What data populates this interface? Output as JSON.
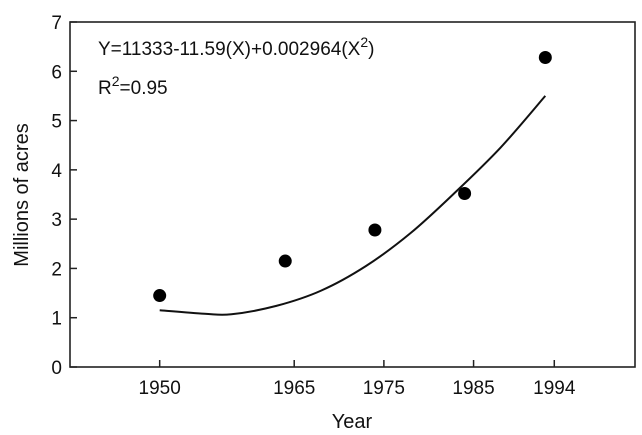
{
  "chart_data": {
    "type": "scatter",
    "xlabel": "Year",
    "ylabel": "Millions of acres",
    "xlim": [
      1940,
      2003
    ],
    "ylim": [
      0,
      7
    ],
    "x_ticks": [
      1950,
      1965,
      1975,
      1985,
      1994
    ],
    "y_ticks": [
      0,
      1,
      2,
      3,
      4,
      5,
      6,
      7
    ],
    "grid": false,
    "series": [
      {
        "x": [
          1950,
          1964,
          1974,
          1984,
          1993
        ],
        "y": [
          1.45,
          2.15,
          2.78,
          3.52,
          6.28
        ]
      }
    ],
    "fit": {
      "equation": "Y=11333-11.59(X)+0.002964(X",
      "equation_exponent": "2",
      "equation_close": ")",
      "r2_label": "R",
      "r2_exponent": "2",
      "r2_value": "=0.95",
      "curve": [
        [
          1950,
          1.15
        ],
        [
          1955,
          1.08
        ],
        [
          1958,
          1.07
        ],
        [
          1963,
          1.24
        ],
        [
          1968,
          1.55
        ],
        [
          1973,
          2.05
        ],
        [
          1978,
          2.72
        ],
        [
          1983,
          3.55
        ],
        [
          1988,
          4.45
        ],
        [
          1993,
          5.5
        ]
      ]
    }
  }
}
